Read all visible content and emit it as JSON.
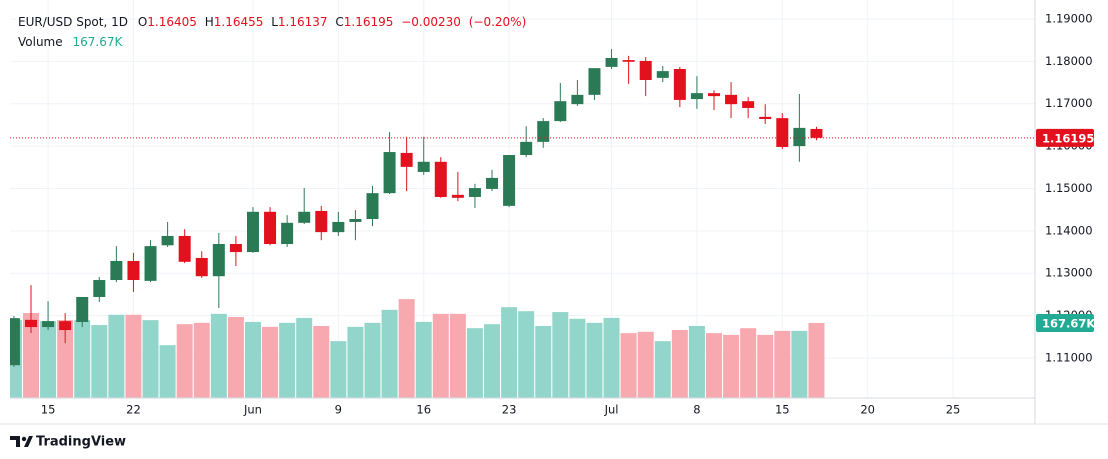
{
  "header": {
    "symbol": "EUR/USD Spot, 1D",
    "o": "O",
    "h": "H",
    "l": "L",
    "c": "C",
    "volume_title": "Volume"
  },
  "branding": "TradingView",
  "chart_data": {
    "type": "candlestick",
    "x": [
      0,
      1,
      2,
      3,
      4,
      5,
      6,
      7,
      8,
      9,
      10,
      11,
      12,
      13,
      14,
      15,
      16,
      17,
      18,
      19,
      20,
      21,
      22,
      23,
      24,
      25,
      26,
      27,
      28,
      29,
      30,
      31,
      32,
      33,
      34,
      35,
      36,
      37,
      38,
      39,
      40,
      41,
      42,
      43,
      44,
      45,
      46,
      47
    ],
    "open": [
      1.1083,
      1.119,
      1.1173,
      1.1187,
      1.1185,
      1.1244,
      1.1284,
      1.1329,
      1.1282,
      1.1366,
      1.1388,
      1.1336,
      1.1293,
      1.1369,
      1.135,
      1.1445,
      1.1369,
      1.1419,
      1.1447,
      1.1397,
      1.1421,
      1.1428,
      1.1489,
      1.1584,
      1.1539,
      1.1563,
      1.1485,
      1.148,
      1.1499,
      1.1459,
      1.1579,
      1.161,
      1.1659,
      1.1699,
      1.1721,
      1.1787,
      1.1803,
      1.1801,
      1.1761,
      1.1782,
      1.1711,
      1.1725,
      1.1721,
      1.1706,
      1.1669,
      1.1666,
      1.16,
      1.16405
    ],
    "high": [
      1.1199,
      1.1272,
      1.1234,
      1.1206,
      1.1244,
      1.1291,
      1.1364,
      1.1348,
      1.1378,
      1.1421,
      1.1404,
      1.1352,
      1.1395,
      1.1388,
      1.1456,
      1.1456,
      1.1437,
      1.1501,
      1.1459,
      1.1445,
      1.1449,
      1.1506,
      1.1633,
      1.1622,
      1.1622,
      1.1574,
      1.1539,
      1.1511,
      1.1544,
      1.1579,
      1.1647,
      1.1666,
      1.1749,
      1.1756,
      1.1784,
      1.1829,
      1.1813,
      1.181,
      1.1789,
      1.1787,
      1.1765,
      1.1732,
      1.1751,
      1.1716,
      1.1699,
      1.1678,
      1.1723,
      1.16455
    ],
    "low": [
      1.1079,
      1.1159,
      1.1166,
      1.1135,
      1.1173,
      1.1232,
      1.1279,
      1.1256,
      1.1279,
      1.1362,
      1.1324,
      1.1289,
      1.1218,
      1.1317,
      1.1348,
      1.1366,
      1.1362,
      1.1416,
      1.1378,
      1.1388,
      1.1378,
      1.1411,
      1.1487,
      1.1494,
      1.1532,
      1.1478,
      1.147,
      1.1454,
      1.1494,
      1.1456,
      1.1574,
      1.1596,
      1.1657,
      1.1695,
      1.1709,
      1.1782,
      1.1747,
      1.1718,
      1.1751,
      1.1692,
      1.1688,
      1.1685,
      1.1666,
      1.1666,
      1.1652,
      1.1593,
      1.1563,
      1.16137
    ],
    "close": [
      1.1194,
      1.1173,
      1.1187,
      1.1166,
      1.1244,
      1.1284,
      1.1329,
      1.1284,
      1.1364,
      1.1388,
      1.1327,
      1.1293,
      1.1369,
      1.135,
      1.1445,
      1.1369,
      1.1419,
      1.1445,
      1.1397,
      1.1421,
      1.1428,
      1.1489,
      1.1586,
      1.1551,
      1.1563,
      1.148,
      1.1478,
      1.1501,
      1.1525,
      1.1579,
      1.161,
      1.1659,
      1.1706,
      1.1721,
      1.1784,
      1.1808,
      1.1799,
      1.1756,
      1.1777,
      1.1709,
      1.1725,
      1.1718,
      1.1699,
      1.169,
      1.1664,
      1.1598,
      1.1643,
      1.16195
    ],
    "change": {
      "value": -0.0023,
      "label": "−0.00230"
    },
    "change_percent": {
      "value": -0.2,
      "label": "(−0.20%)"
    },
    "up_color": "#2a7b55",
    "down_color": "#e3101d",
    "volume": {
      "values": [
        174,
        190,
        172,
        174,
        174,
        163,
        186,
        186,
        174,
        118,
        165,
        168,
        188,
        181,
        170,
        159,
        168,
        179,
        161,
        127,
        159,
        168,
        197,
        221,
        170,
        188,
        188,
        156,
        165,
        203,
        194,
        161,
        192,
        177,
        168,
        179,
        145,
        148,
        127,
        152,
        161,
        145,
        141,
        156,
        141,
        150,
        150,
        167.67
      ],
      "last_label": "167.67K",
      "lim": [
        0,
        867
      ],
      "up_color": "#92d5ca",
      "down_color": "#f8a9b0"
    },
    "xlim": [
      -0.23,
      59.8
    ],
    "xticks": [
      {
        "value": 2,
        "label": "15"
      },
      {
        "value": 7,
        "label": "22"
      },
      {
        "value": 14,
        "label": "Jun"
      },
      {
        "value": 19,
        "label": "9"
      },
      {
        "value": 24,
        "label": "16"
      },
      {
        "value": 29,
        "label": "23"
      },
      {
        "value": 35,
        "label": "Jul"
      },
      {
        "value": 40,
        "label": "8"
      },
      {
        "value": 45,
        "label": "15"
      },
      {
        "value": 50,
        "label": "20"
      },
      {
        "value": 55,
        "label": "25"
      }
    ],
    "ylim": [
      1.10056,
      1.19212
    ],
    "yticks": [
      {
        "value": 1.11,
        "label": "1.11000"
      },
      {
        "value": 1.12,
        "label": "1.12000"
      },
      {
        "value": 1.13,
        "label": "1.13000"
      },
      {
        "value": 1.14,
        "label": "1.14000"
      },
      {
        "value": 1.15,
        "label": "1.15000"
      },
      {
        "value": 1.16,
        "label": "1.16000"
      },
      {
        "value": 1.17,
        "label": "1.17000"
      },
      {
        "value": 1.18,
        "label": "1.18000"
      },
      {
        "value": 1.19,
        "label": "1.19000"
      }
    ],
    "grid": true
  }
}
